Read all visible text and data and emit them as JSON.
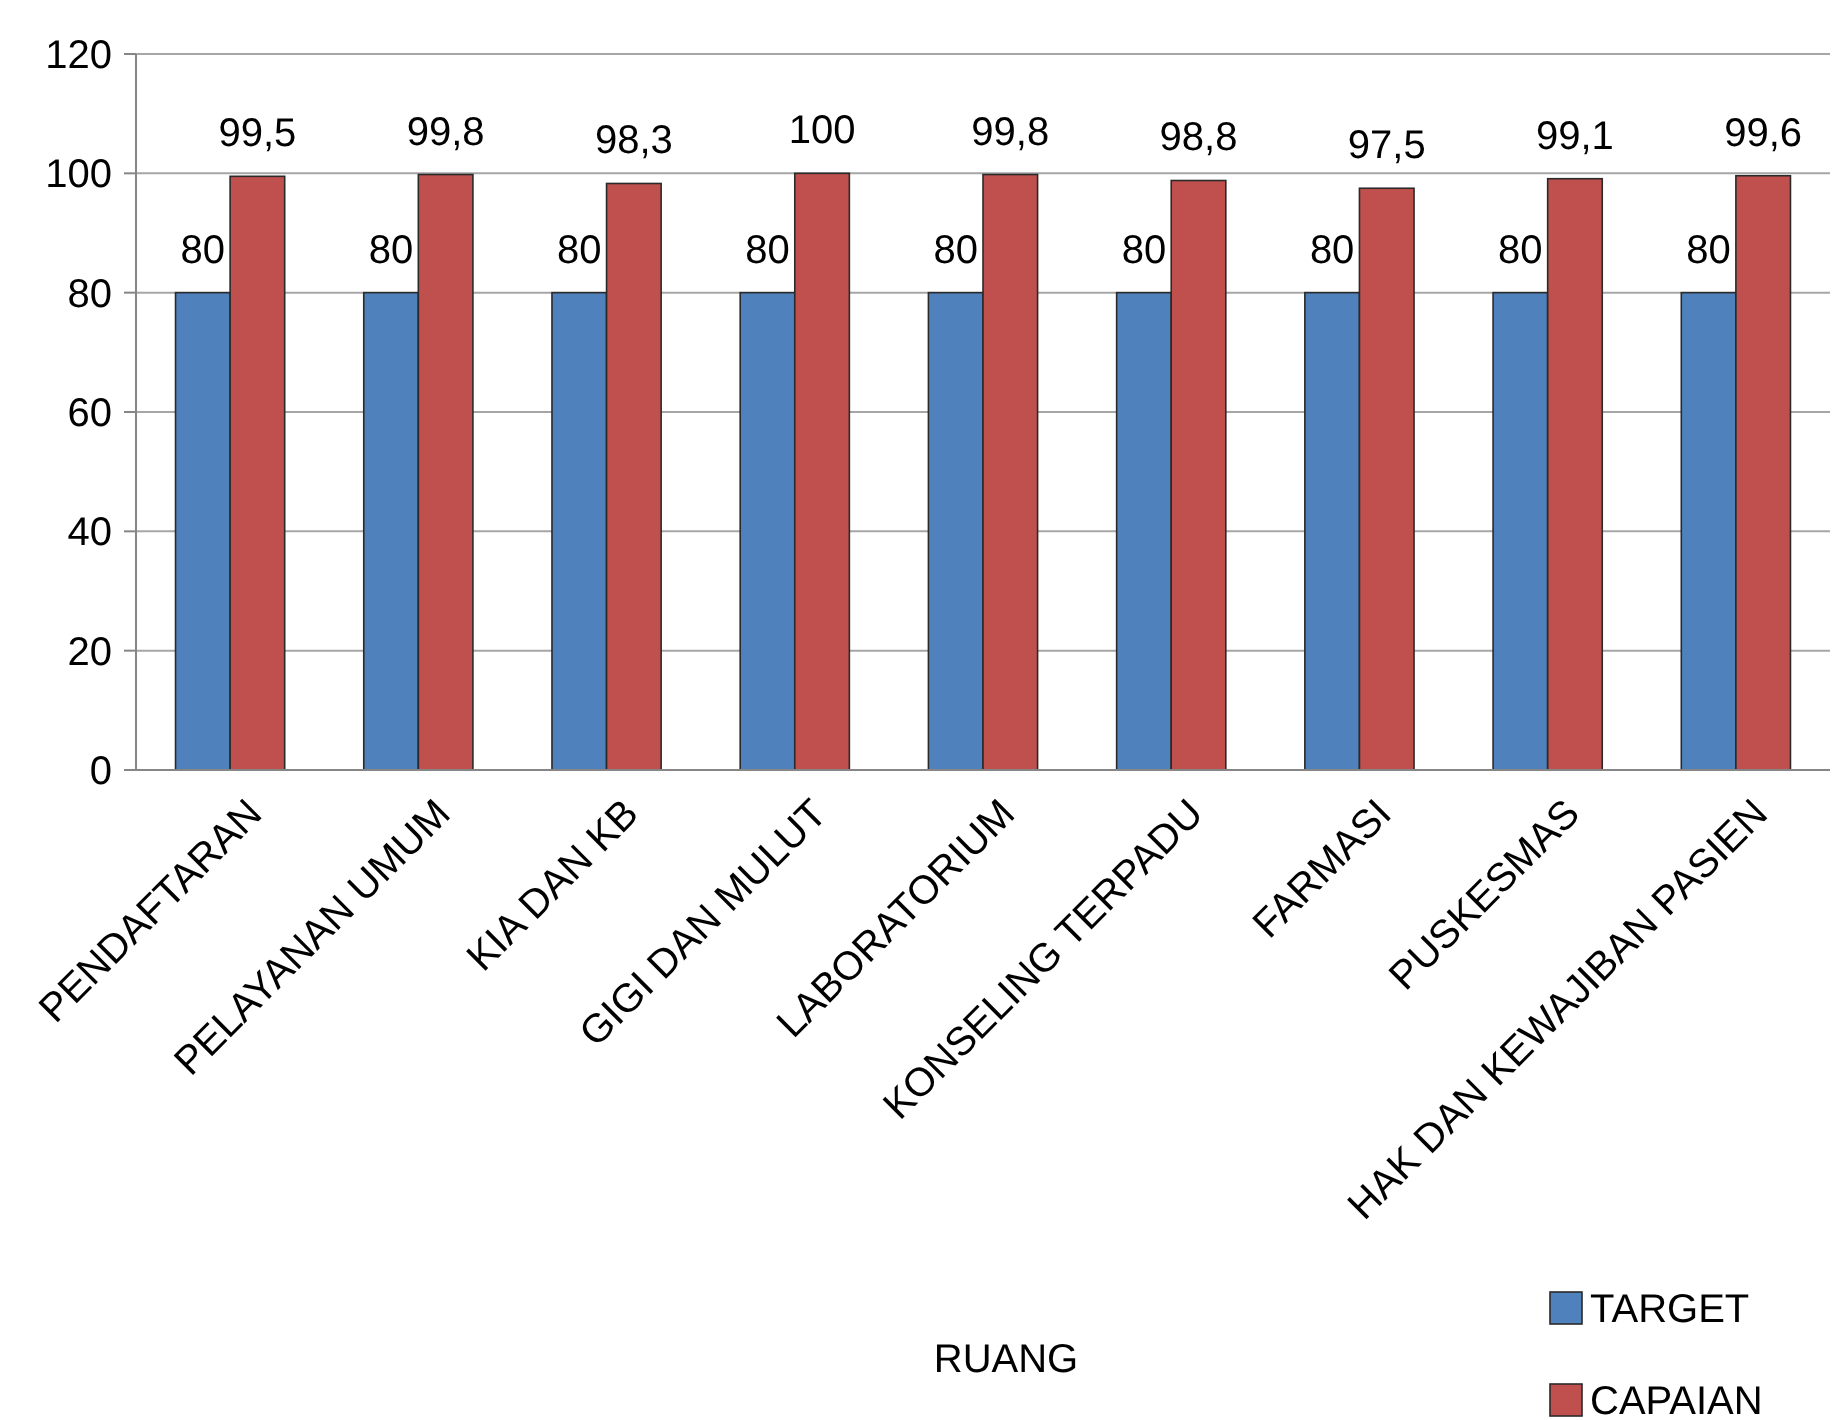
{
  "chart_data": {
    "type": "bar",
    "xlabel": "RUANG",
    "categories": [
      "PENDAFTARAN",
      "PELAYANAN UMUM",
      "KIA DAN KB",
      "GIGI DAN MULUT",
      "LABORATORIUM",
      "KONSELING TERPADU",
      "FARMASI",
      "PUSKESMAS",
      "HAK DAN KEWAJIBAN PASIEN"
    ],
    "series": [
      {
        "name": "TARGET",
        "color": "#4f81bd",
        "values": [
          80,
          80,
          80,
          80,
          80,
          80,
          80,
          80,
          80
        ],
        "value_labels": [
          "80",
          "80",
          "80",
          "80",
          "80",
          "80",
          "80",
          "80",
          "80"
        ]
      },
      {
        "name": "CAPAIAN",
        "color": "#c0504d",
        "values": [
          99.5,
          99.8,
          98.3,
          100,
          99.8,
          98.8,
          97.5,
          99.1,
          99.6
        ],
        "value_labels": [
          "99,5",
          "99,8",
          "98,3",
          "100",
          "99,8",
          "98,8",
          "97,5",
          "99,1",
          "99,6"
        ]
      }
    ],
    "ylim": [
      0,
      120
    ],
    "yticks": [
      0,
      20,
      40,
      60,
      80,
      100,
      120
    ],
    "grid": "y",
    "legend": "bottom right"
  }
}
